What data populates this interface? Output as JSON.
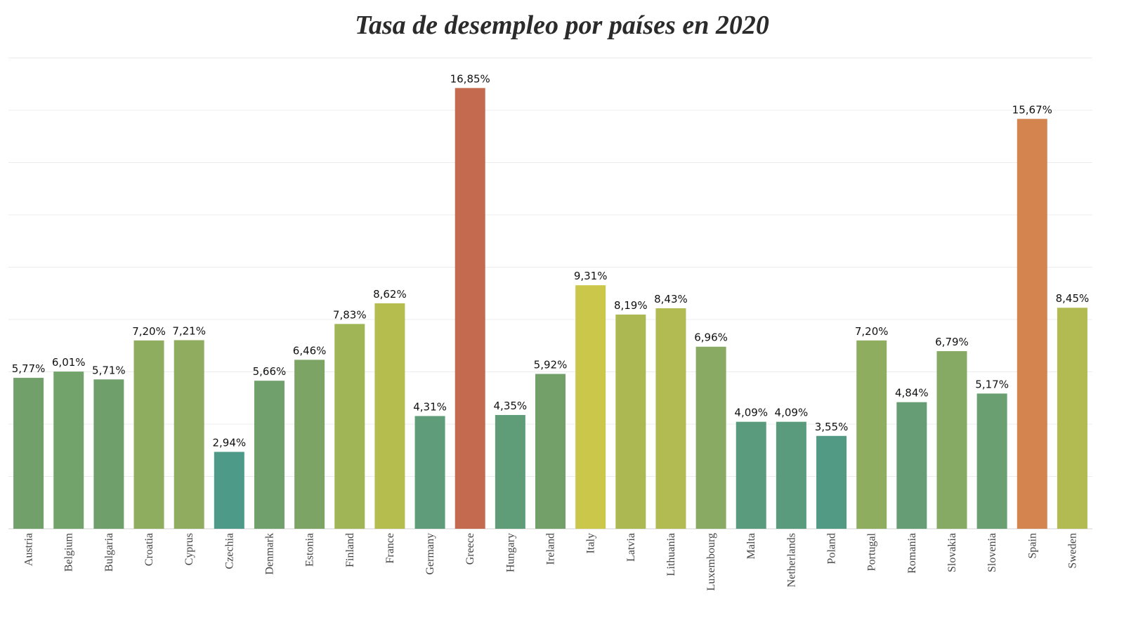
{
  "chart_data": {
    "type": "bar",
    "title": "Tasa de desempleo por países en 2020",
    "xlabel": "",
    "ylabel": "",
    "ylim": [
      0,
      18
    ],
    "grid": true,
    "categories": [
      "Austria",
      "Belgium",
      "Bulgaria",
      "Croatia",
      "Cyprus",
      "Czechia",
      "Denmark",
      "Estonia",
      "Finland",
      "France",
      "Germany",
      "Greece",
      "Hungary",
      "Ireland",
      "Italy",
      "Latvia",
      "Lithuania",
      "Luxembourg",
      "Malta",
      "Netherlands",
      "Poland",
      "Portugal",
      "Romania",
      "Slovakia",
      "Slovenia",
      "Spain",
      "Sweden"
    ],
    "values": [
      5.77,
      6.01,
      5.71,
      7.2,
      7.21,
      2.94,
      5.66,
      6.46,
      7.83,
      8.62,
      4.31,
      16.85,
      4.35,
      5.92,
      9.31,
      8.19,
      8.43,
      6.96,
      4.09,
      4.09,
      3.55,
      7.2,
      4.84,
      6.79,
      5.17,
      15.67,
      8.45
    ],
    "value_labels": [
      "5,77%",
      "6,01%",
      "5,71%",
      "7,20%",
      "7,21%",
      "2,94%",
      "5,66%",
      "6,46%",
      "7,83%",
      "8,62%",
      "4,31%",
      "16,85%",
      "4,35%",
      "5,92%",
      "9,31%",
      "8,19%",
      "8,43%",
      "6,96%",
      "4,09%",
      "4,09%",
      "3,55%",
      "7,20%",
      "4,84%",
      "6,79%",
      "5,17%",
      "15,67%",
      "8,45%"
    ],
    "colors": [
      "#71a06b",
      "#72a36a",
      "#6fa06c",
      "#8fad5f",
      "#90ad5f",
      "#4e9a88",
      "#70a06b",
      "#7ba465",
      "#a0b556",
      "#b6bd4f",
      "#5f9c79",
      "#c46a4e",
      "#5f9c78",
      "#73a069",
      "#cac74a",
      "#acb953",
      "#b1bb51",
      "#88aa63",
      "#5b9b7d",
      "#5b9b7d",
      "#539a84",
      "#8fad5f",
      "#669d74",
      "#86a963",
      "#6a9f71",
      "#d3844f",
      "#b1bb51"
    ]
  }
}
